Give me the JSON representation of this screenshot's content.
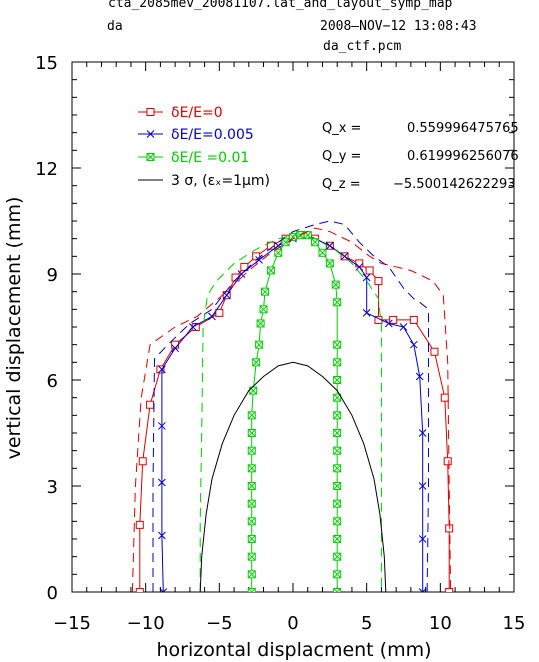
{
  "header": {
    "file": "cta_2085mev_20081107.lat_and_layout_symp_map",
    "label_left": "da",
    "datetime": "2008—NOV−12  13:08:43",
    "label_right": "da_ctf.pcm"
  },
  "tunes": {
    "qx_label": "Q_x  =",
    "qx_value": "0.559996475765",
    "qy_label": "Q_y  =",
    "qy_value": "0.619996256076",
    "qz_label": "Q_z  =",
    "qz_value": "−5.500142622293"
  },
  "colors": {
    "red": "#e00000",
    "blue": "#0000d0",
    "green": "#00cc00",
    "black": "#000000"
  },
  "chart_data": {
    "type": "line",
    "xlabel": "horizontal displacment (mm)",
    "ylabel": "vertical displacement (mm)",
    "xlim": [
      -15,
      15
    ],
    "ylim": [
      0,
      15
    ],
    "xticks": [
      -15,
      -10,
      -5,
      0,
      5,
      10,
      15
    ],
    "yticks": [
      0,
      3,
      6,
      9,
      12,
      15
    ],
    "legend_position": "top-left",
    "grid": false,
    "series": [
      {
        "name": "δE/E=0",
        "color": "#e00000",
        "style": "solid",
        "marker": "square",
        "points": [
          [
            -10.4,
            0
          ],
          [
            -10.4,
            1.9
          ],
          [
            -10.2,
            3.7
          ],
          [
            -9.7,
            5.3
          ],
          [
            -9.0,
            6.3
          ],
          [
            -8.0,
            7.0
          ],
          [
            -6.6,
            7.5
          ],
          [
            -5.0,
            7.9
          ],
          [
            -4.5,
            8.4
          ],
          [
            -3.9,
            8.9
          ],
          [
            -3.3,
            9.2
          ],
          [
            -2.5,
            9.5
          ],
          [
            -1.5,
            9.8
          ],
          [
            -0.5,
            10.0
          ],
          [
            0.5,
            10.1
          ],
          [
            1.5,
            10.0
          ],
          [
            2.5,
            9.8
          ],
          [
            3.5,
            9.5
          ],
          [
            4.5,
            9.3
          ],
          [
            5.2,
            9.1
          ],
          [
            5.8,
            8.8
          ],
          [
            5.8,
            7.7
          ],
          [
            6.8,
            7.7
          ],
          [
            8.2,
            7.7
          ],
          [
            9.6,
            6.8
          ],
          [
            10.3,
            5.5
          ],
          [
            10.5,
            3.7
          ],
          [
            10.6,
            1.8
          ],
          [
            10.6,
            0
          ]
        ]
      },
      {
        "name": "δE/E=0.005",
        "color": "#0000d0",
        "style": "solid",
        "marker": "x",
        "points": [
          [
            -8.8,
            0
          ],
          [
            -8.9,
            1.6
          ],
          [
            -8.9,
            3.1
          ],
          [
            -8.9,
            4.7
          ],
          [
            -8.9,
            6.3
          ],
          [
            -8.0,
            6.9
          ],
          [
            -6.8,
            7.5
          ],
          [
            -5.5,
            7.8
          ],
          [
            -4.5,
            8.4
          ],
          [
            -3.5,
            9.0
          ],
          [
            -2.3,
            9.4
          ],
          [
            -1.0,
            9.8
          ],
          [
            0,
            10.0
          ],
          [
            1.0,
            10.1
          ],
          [
            2.5,
            9.8
          ],
          [
            3.5,
            9.5
          ],
          [
            4.5,
            9.2
          ],
          [
            5.0,
            8.9
          ],
          [
            5.0,
            7.9
          ],
          [
            6.5,
            7.6
          ],
          [
            7.5,
            7.5
          ],
          [
            8.2,
            7.0
          ],
          [
            8.6,
            6.1
          ],
          [
            8.8,
            4.5
          ],
          [
            8.8,
            3.0
          ],
          [
            8.8,
            1.5
          ],
          [
            8.8,
            0
          ]
        ]
      },
      {
        "name": "δE/E =0.01",
        "color": "#00cc00",
        "style": "solid",
        "marker": "boxx",
        "points": [
          [
            -2.8,
            0
          ],
          [
            -2.8,
            0.5
          ],
          [
            -2.8,
            1.0
          ],
          [
            -2.8,
            1.5
          ],
          [
            -2.8,
            2.0
          ],
          [
            -2.8,
            2.5
          ],
          [
            -2.8,
            3.0
          ],
          [
            -2.8,
            3.5
          ],
          [
            -2.8,
            4.0
          ],
          [
            -2.8,
            4.5
          ],
          [
            -2.8,
            5.0
          ],
          [
            -2.7,
            5.7
          ],
          [
            -2.5,
            6.5
          ],
          [
            -2.3,
            7.0
          ],
          [
            -2.2,
            7.6
          ],
          [
            -2.0,
            8.0
          ],
          [
            -1.9,
            8.5
          ],
          [
            -1.5,
            9.1
          ],
          [
            -1.0,
            9.6
          ],
          [
            -0.5,
            9.9
          ],
          [
            0,
            10.05
          ],
          [
            0.5,
            10.1
          ],
          [
            1.0,
            10.1
          ],
          [
            1.5,
            9.9
          ],
          [
            2.0,
            9.6
          ],
          [
            2.5,
            9.3
          ],
          [
            2.9,
            8.7
          ],
          [
            3.0,
            8.2
          ],
          [
            3.0,
            7.0
          ],
          [
            3.0,
            6.5
          ],
          [
            3.0,
            6.0
          ],
          [
            3.0,
            5.5
          ],
          [
            3.0,
            5.0
          ],
          [
            3.0,
            4.5
          ],
          [
            3.0,
            4.0
          ],
          [
            3.0,
            3.5
          ],
          [
            3.0,
            3.0
          ],
          [
            3.0,
            2.5
          ],
          [
            3.0,
            2.0
          ],
          [
            3.0,
            1.5
          ],
          [
            3.0,
            1.0
          ],
          [
            3.0,
            0.5
          ],
          [
            3.0,
            0
          ]
        ]
      },
      {
        "name": "",
        "color": "#e00000",
        "style": "dash",
        "marker": "none",
        "points": [
          [
            -10.9,
            0
          ],
          [
            -10.7,
            3.0
          ],
          [
            -10.3,
            5.5
          ],
          [
            -9.7,
            7.0
          ],
          [
            -8.0,
            7.5
          ],
          [
            -6.5,
            7.8
          ],
          [
            -4.5,
            8.5
          ],
          [
            -3.0,
            9.1
          ],
          [
            -1.5,
            9.6
          ],
          [
            0,
            10.0
          ],
          [
            1.5,
            10.3
          ],
          [
            2.5,
            10.2
          ],
          [
            4.0,
            9.9
          ],
          [
            5.2,
            9.5
          ],
          [
            6.0,
            9.3
          ],
          [
            8.0,
            9.1
          ],
          [
            9.5,
            8.8
          ],
          [
            10.2,
            8.4
          ],
          [
            10.5,
            6.5
          ],
          [
            10.6,
            3.0
          ],
          [
            10.7,
            0
          ]
        ]
      },
      {
        "name": "",
        "color": "#0000d0",
        "style": "dash",
        "marker": "none",
        "points": [
          [
            -9.5,
            0
          ],
          [
            -9.5,
            3.0
          ],
          [
            -9.4,
            6.6
          ],
          [
            -8.5,
            7.0
          ],
          [
            -7.0,
            7.6
          ],
          [
            -5.5,
            8.0
          ],
          [
            -4.0,
            8.8
          ],
          [
            -2.5,
            9.4
          ],
          [
            -1.0,
            9.9
          ],
          [
            0,
            10.2
          ],
          [
            1.5,
            10.4
          ],
          [
            2.5,
            10.5
          ],
          [
            3.5,
            10.4
          ],
          [
            4.5,
            9.9
          ],
          [
            5.5,
            9.5
          ],
          [
            6.5,
            9.2
          ],
          [
            7.5,
            8.6
          ],
          [
            8.2,
            8.3
          ],
          [
            8.6,
            8.2
          ],
          [
            9.2,
            8.0
          ],
          [
            9.2,
            6.0
          ],
          [
            9.2,
            3.0
          ],
          [
            9.1,
            0
          ]
        ]
      },
      {
        "name": "",
        "color": "#00cc00",
        "style": "dash",
        "marker": "none",
        "points": [
          [
            -6.3,
            0
          ],
          [
            -6.3,
            2.0
          ],
          [
            -6.2,
            4.5
          ],
          [
            -6.1,
            7.5
          ],
          [
            -5.8,
            8.4
          ],
          [
            -5.2,
            8.8
          ],
          [
            -4.0,
            9.3
          ],
          [
            -2.5,
            9.7
          ],
          [
            -1.0,
            10.0
          ],
          [
            0,
            10.1
          ],
          [
            1.5,
            10.0
          ],
          [
            2.8,
            9.7
          ],
          [
            4.0,
            9.3
          ],
          [
            5.0,
            8.8
          ],
          [
            5.8,
            8.3
          ],
          [
            6.0,
            7.5
          ],
          [
            6.0,
            4.5
          ],
          [
            6.0,
            2.0
          ],
          [
            6.0,
            0
          ]
        ]
      },
      {
        "name": "3 σ, (εₓ=1μm)",
        "color": "#000000",
        "style": "solid",
        "marker": "none",
        "points": [
          [
            -6.3,
            0
          ],
          [
            -6.2,
            1.0
          ],
          [
            -5.9,
            2.2
          ],
          [
            -5.5,
            3.2
          ],
          [
            -4.8,
            4.2
          ],
          [
            -4.0,
            5.0
          ],
          [
            -3.0,
            5.7
          ],
          [
            -2.0,
            6.1
          ],
          [
            -1.0,
            6.4
          ],
          [
            0,
            6.5
          ],
          [
            1.0,
            6.4
          ],
          [
            2.0,
            6.1
          ],
          [
            3.0,
            5.7
          ],
          [
            4.0,
            5.0
          ],
          [
            4.8,
            4.2
          ],
          [
            5.5,
            3.2
          ],
          [
            5.9,
            2.2
          ],
          [
            6.2,
            1.0
          ],
          [
            6.3,
            0
          ]
        ]
      }
    ]
  }
}
